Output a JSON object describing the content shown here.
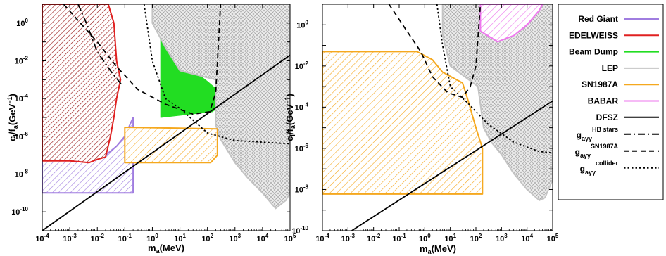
{
  "chart_data": [
    {
      "type": "line",
      "panel": "left",
      "xlabel": "m_a(MeV)",
      "ylabel": "c_l/f_a(GeV^-1)",
      "x_scale": "log",
      "y_scale": "log",
      "xlim": [
        0.0001,
        100000
      ],
      "ylim": [
        1e-11,
        10
      ],
      "grid": false,
      "x_ticks": [
        {
          "mant": "10",
          "exp": "-4"
        },
        {
          "mant": "10",
          "exp": "-3"
        },
        {
          "mant": "10",
          "exp": "-2"
        },
        {
          "mant": "10",
          "exp": "-1"
        },
        {
          "mant": "10",
          "exp": "0"
        },
        {
          "mant": "10",
          "exp": "1"
        },
        {
          "mant": "10",
          "exp": "2"
        },
        {
          "mant": "10",
          "exp": "3"
        },
        {
          "mant": "10",
          "exp": "4"
        },
        {
          "mant": "10",
          "exp": "5"
        }
      ],
      "y_ticks": [
        {
          "mant": "10",
          "exp": "0"
        },
        {
          "mant": "10",
          "exp": "-2"
        },
        {
          "mant": "10",
          "exp": "-4"
        },
        {
          "mant": "10",
          "exp": "-6"
        },
        {
          "mant": "10",
          "exp": "-8"
        },
        {
          "mant": "10",
          "exp": "-10"
        }
      ],
      "series": [
        {
          "name": "Red Giant",
          "kind": "region",
          "color": "#a07de0",
          "points": [
            [
              0.0001,
              1e-09
            ],
            [
              0.0001,
              1e-07
            ],
            [
              0.0015,
              7e-08
            ],
            [
              0.02,
              1e-07
            ],
            [
              0.05,
              3e-07
            ],
            [
              0.1,
              1e-06
            ],
            [
              0.2,
              1e-05
            ],
            [
              0.2,
              1e-09
            ]
          ]
        },
        {
          "name": "EDELWEISS",
          "kind": "region",
          "color": "#e02020",
          "points": [
            [
              0.0001,
              5e-08
            ],
            [
              0.0001,
              10
            ],
            [
              0.025,
              10
            ],
            [
              0.04,
              1
            ],
            [
              0.05,
              0.01
            ],
            [
              0.07,
              0.001
            ],
            [
              0.05,
              0.0001
            ],
            [
              0.04,
              1e-05
            ],
            [
              0.03,
              1e-06
            ],
            [
              0.02,
              8e-08
            ],
            [
              0.01,
              6e-08
            ],
            [
              0.005,
              4e-08
            ],
            [
              0.001,
              5e-08
            ]
          ]
        },
        {
          "name": "Beam Dump",
          "kind": "region",
          "color": "#22dd22",
          "points": [
            [
              2,
              0.3
            ],
            [
              20,
              0.005
            ],
            [
              100,
              0.0008
            ],
            [
              220,
              0.0003
            ],
            [
              220,
              3e-05
            ],
            [
              150,
              2e-05
            ],
            [
              2,
              1e-05
            ]
          ]
        },
        {
          "name": "LEP",
          "kind": "region",
          "color": "#c4c4c4",
          "points": [
            [
              1,
              10
            ],
            [
              100000,
              10
            ],
            [
              100000,
              1e-09
            ],
            [
              70000,
              4e-10
            ],
            [
              30000,
              1.5e-10
            ],
            [
              10000,
              1e-09
            ],
            [
              3000,
              6e-09
            ],
            [
              1000,
              4e-08
            ],
            [
              300,
              7e-07
            ],
            [
              200,
              4e-06
            ],
            [
              200,
              0.001
            ],
            [
              10,
              0.003
            ],
            [
              3,
              0.05
            ],
            [
              1,
              1
            ]
          ]
        },
        {
          "name": "SN1987A",
          "kind": "region",
          "color": "#f5a81e",
          "points": [
            [
              0.1,
              4e-08
            ],
            [
              130,
              4e-08
            ],
            [
              230,
              1e-07
            ],
            [
              230,
              2.5e-06
            ],
            [
              0.1,
              3e-06
            ]
          ]
        },
        {
          "name": "DFSZ",
          "kind": "line",
          "style": "solid",
          "points": [
            [
              0.0001,
              1e-11
            ],
            [
              100000,
              0.02
            ]
          ]
        },
        {
          "name": "g_aγγ HB stars",
          "kind": "line",
          "style": "dashdot",
          "points": [
            [
              0.002,
              10
            ],
            [
              0.004,
              1
            ],
            [
              0.01,
              0.03
            ],
            [
              0.03,
              0.003
            ],
            [
              0.08,
              0.0005
            ]
          ]
        },
        {
          "name": "g_aγγ SN1987A",
          "kind": "line",
          "style": "dashed",
          "points": [
            [
              0.0006,
              10
            ],
            [
              0.01,
              0.1
            ],
            [
              0.05,
              0.005
            ],
            [
              0.3,
              0.0003
            ],
            [
              3,
              5e-05
            ],
            [
              30,
              1.5e-05
            ],
            [
              120,
              2e-05
            ],
            [
              200,
              0.0002
            ],
            [
              300,
              10
            ]
          ]
        },
        {
          "name": "g_aγγ collider",
          "kind": "line",
          "style": "dotted",
          "points": [
            [
              0.5,
              10
            ],
            [
              1,
              0.01
            ],
            [
              3,
              0.0001
            ],
            [
              10,
              3e-05
            ],
            [
              100,
              1.5e-06
            ],
            [
              1000,
              6e-07
            ],
            [
              100000,
              4e-07
            ]
          ]
        }
      ]
    },
    {
      "type": "line",
      "panel": "right",
      "xlabel": "m_a(MeV)",
      "ylabel": "c_l/f_a(GeV^-1)",
      "x_scale": "log",
      "y_scale": "log",
      "xlim": [
        0.0001,
        100000
      ],
      "ylim": [
        1e-10,
        10
      ],
      "grid": false,
      "x_ticks": [
        {
          "mant": "10",
          "exp": "-4"
        },
        {
          "mant": "10",
          "exp": "-3"
        },
        {
          "mant": "10",
          "exp": "-2"
        },
        {
          "mant": "10",
          "exp": "-1"
        },
        {
          "mant": "10",
          "exp": "0"
        },
        {
          "mant": "10",
          "exp": "1"
        },
        {
          "mant": "10",
          "exp": "2"
        },
        {
          "mant": "10",
          "exp": "3"
        },
        {
          "mant": "10",
          "exp": "4"
        },
        {
          "mant": "10",
          "exp": "5"
        }
      ],
      "y_ticks": [
        {
          "mant": "10",
          "exp": "0"
        },
        {
          "mant": "10",
          "exp": "-2"
        },
        {
          "mant": "10",
          "exp": "-4"
        },
        {
          "mant": "10",
          "exp": "-6"
        },
        {
          "mant": "10",
          "exp": "-8"
        },
        {
          "mant": "10",
          "exp": "-10"
        }
      ],
      "series": [
        {
          "name": "LEP",
          "kind": "region",
          "color": "#c4c4c4",
          "points": [
            [
              5,
              10
            ],
            [
              100000,
              10
            ],
            [
              100000,
              3e-08
            ],
            [
              50000,
              4e-09
            ],
            [
              30000,
              3e-09
            ],
            [
              10000,
              1e-08
            ],
            [
              3000,
              6e-08
            ],
            [
              1000,
              5e-07
            ],
            [
              400,
              2e-06
            ],
            [
              200,
              1e-05
            ],
            [
              120,
              0.001
            ],
            [
              10,
              0.01
            ],
            [
              5,
              0.3
            ]
          ]
        },
        {
          "name": "BABAR",
          "kind": "region",
          "color": "#ee77ee",
          "points": [
            [
              150,
              10
            ],
            [
              40000,
              10
            ],
            [
              30000,
              5
            ],
            [
              10000,
              1
            ],
            [
              3000,
              0.3
            ],
            [
              700,
              0.15
            ],
            [
              150,
              0.5
            ]
          ]
        },
        {
          "name": "SN1987A",
          "kind": "region",
          "color": "#f5a81e",
          "points": [
            [
              0.0001,
              6e-09
            ],
            [
              180,
              6e-09
            ],
            [
              180,
              1e-06
            ],
            [
              100,
              1e-05
            ],
            [
              50,
              0.0002
            ],
            [
              30,
              0.0015
            ],
            [
              5,
              0.005
            ],
            [
              2,
              0.02
            ],
            [
              0.5,
              0.05
            ],
            [
              0.0001,
              0.05
            ]
          ]
        },
        {
          "name": "DFSZ",
          "kind": "line",
          "style": "solid",
          "points": [
            [
              0.0014,
              1e-10
            ],
            [
              100000,
              0.0002
            ]
          ]
        },
        {
          "name": "g_aγγ SN1987A",
          "kind": "line",
          "style": "dashed",
          "points": [
            [
              0.04,
              10
            ],
            [
              0.2,
              0.5
            ],
            [
              0.7,
              0.05
            ],
            [
              2,
              0.003
            ],
            [
              8,
              0.0005
            ],
            [
              30,
              0.0003
            ],
            [
              60,
              0.001
            ],
            [
              100,
              0.01
            ],
            [
              150,
              10
            ]
          ]
        },
        {
          "name": "g_aγγ collider",
          "kind": "line",
          "style": "dotted",
          "points": [
            [
              3,
              10
            ],
            [
              5,
              0.1
            ],
            [
              10,
              0.001
            ],
            [
              50,
              0.00015
            ],
            [
              300,
              1.5e-05
            ],
            [
              3000,
              2e-06
            ],
            [
              30000,
              7e-07
            ],
            [
              100000,
              6e-07
            ]
          ]
        }
      ]
    }
  ],
  "legend": {
    "placement": "right",
    "items": [
      {
        "label": "Red Giant",
        "sub": "",
        "color": "#a07de0",
        "style": "solid"
      },
      {
        "label": "EDELWEISS",
        "sub": "",
        "color": "#e02020",
        "style": "solid"
      },
      {
        "label": "Beam Dump",
        "sub": "",
        "color": "#22dd22",
        "style": "solid"
      },
      {
        "label": "LEP",
        "sub": "",
        "color": "#c4c4c4",
        "style": "solid"
      },
      {
        "label": "SN1987A",
        "sub": "",
        "color": "#f5a81e",
        "style": "solid"
      },
      {
        "label": "BABAR",
        "sub": "",
        "color": "#ee77ee",
        "style": "solid"
      },
      {
        "label": "DFSZ",
        "sub": "",
        "color": "#000000",
        "style": "solid"
      },
      {
        "label": "g",
        "sub": "aγγ",
        "sup": "HB stars",
        "color": "#000000",
        "style": "dashdot"
      },
      {
        "label": "g",
        "sub": "aγγ",
        "sup": "SN1987A",
        "color": "#000000",
        "style": "dashed"
      },
      {
        "label": "g",
        "sub": "aγγ",
        "sup": "collider",
        "color": "#000000",
        "style": "dotted"
      }
    ]
  }
}
